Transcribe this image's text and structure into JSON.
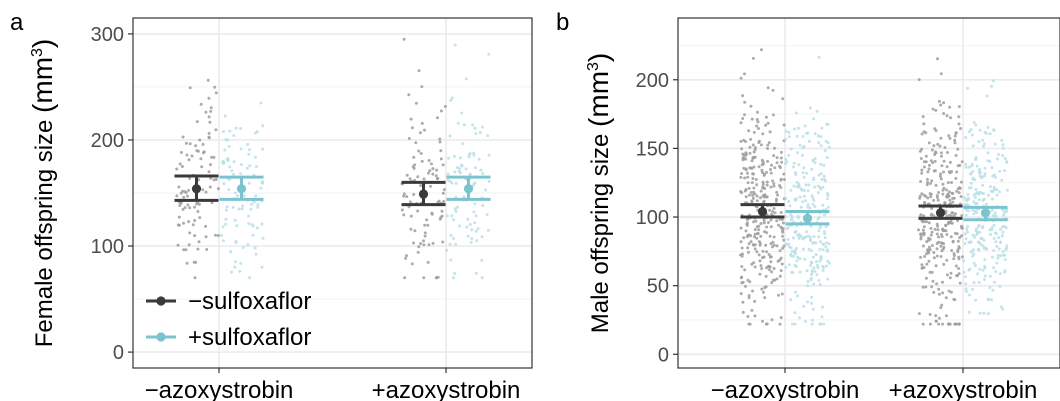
{
  "colors": {
    "minus_sulfoxaflor": "#3a3a3a",
    "plus_sulfoxaflor": "#7cc3d0",
    "minus_sulfoxaflor_points": "#9e9e9e",
    "plus_sulfoxaflor_points": "#b9dfe6"
  },
  "legend": {
    "position": "bottom-left inside panel a",
    "items": [
      {
        "key": "minus",
        "label": "−sulfoxaflor",
        "color": "#3a3a3a"
      },
      {
        "key": "plus",
        "label": "+sulfoxaflor",
        "color": "#7cc3d0"
      }
    ]
  },
  "chart_data": [
    {
      "panel_label": "a",
      "type": "scatter",
      "subtype": "jittered points with mean and error bars",
      "categories": [
        "−azoxystrobin",
        "+azoxystrobin"
      ],
      "ylabel_main": "Female offspring size ",
      "ylabel_unit": "(mm",
      "ylabel_sup": "3",
      "ylabel_close": ")",
      "ylim": [
        -15,
        315
      ],
      "yticks": [
        0,
        100,
        200,
        300
      ],
      "ytick_labels": [
        "0",
        "100",
        "200",
        "300"
      ],
      "grid": true,
      "series": [
        {
          "key": "minus",
          "name": "−sulfoxaflor",
          "means": [
            154,
            149
          ],
          "lower": [
            143,
            139
          ],
          "upper": [
            166,
            160
          ],
          "n_points": 100,
          "range": [
            70,
            295
          ]
        },
        {
          "key": "plus",
          "name": "+sulfoxaflor",
          "means": [
            154,
            154
          ],
          "lower": [
            144,
            144
          ],
          "upper": [
            165,
            165
          ],
          "n_points": 100,
          "range": [
            70,
            295
          ]
        }
      ]
    },
    {
      "panel_label": "b",
      "type": "scatter",
      "subtype": "jittered points with mean and error bars",
      "categories": [
        "−azoxystrobin",
        "+azoxystrobin"
      ],
      "ylabel_main": "Male offspring size ",
      "ylabel_unit": "(mm",
      "ylabel_sup": "3",
      "ylabel_close": ")",
      "ylim": [
        -10,
        245
      ],
      "yticks": [
        0,
        50,
        100,
        150,
        200
      ],
      "ytick_labels": [
        "0",
        "50",
        "100",
        "150",
        "200"
      ],
      "grid": true,
      "series": [
        {
          "key": "minus",
          "name": "−sulfoxaflor",
          "means": [
            104,
            103
          ],
          "lower": [
            100,
            99
          ],
          "upper": [
            109,
            108
          ],
          "n_points": 320,
          "range": [
            22,
            236
          ]
        },
        {
          "key": "plus",
          "name": "+sulfoxaflor",
          "means": [
            99,
            103
          ],
          "lower": [
            95,
            98
          ],
          "upper": [
            104,
            107
          ],
          "n_points": 260,
          "range": [
            22,
            218
          ]
        }
      ]
    }
  ]
}
